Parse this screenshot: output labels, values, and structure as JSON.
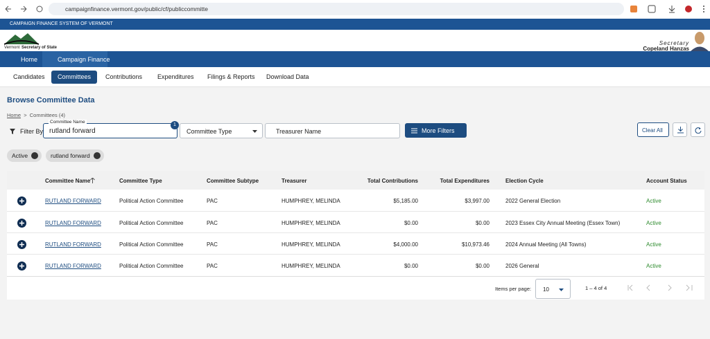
{
  "browser": {
    "url": "campaignfinance.vermont.gov/public/cf/publiccommitte"
  },
  "header": {
    "banner": "CAMPAIGN FINANCE SYSTEM OF VERMONT",
    "logo_state": "Vermont",
    "logo_office": "Secretary of State",
    "secretary_title": "Secretary",
    "secretary_name": "Copeland Hanzas"
  },
  "nav": {
    "primary": [
      "Home",
      "Campaign Finance"
    ],
    "tabs": [
      "Candidates",
      "Committees",
      "Contributions",
      "Expenditures",
      "Filings & Reports",
      "Download Data"
    ],
    "active_tab": 1
  },
  "page": {
    "title": "Browse Committee Data",
    "breadcrumb": [
      "Home",
      "Committees (4)"
    ],
    "breadcrumb_separator": ">"
  },
  "filters": {
    "filter_by": "Filter By",
    "committee_name_label": "Committee Name",
    "committee_name_value": "rutland forward",
    "badge": "1",
    "committee_type": "Committee Type",
    "treasurer_name": "Treasurer Name",
    "more_filters": "More Filters",
    "clear_all": "Clear All",
    "chips": [
      "Active",
      "rutland forward"
    ]
  },
  "table": {
    "columns": [
      "Committee Name",
      "Committee Type",
      "Committee Subtype",
      "Treasurer",
      "Total Contributions",
      "Total Expenditures",
      "Election Cycle",
      "Account Status"
    ],
    "rows": [
      [
        "RUTLAND FORWARD",
        "Political Action Committee",
        "PAC",
        "HUMPHREY, MELINDA",
        "$5,185.00",
        "$3,997.00",
        "2022 General Election",
        "Active"
      ],
      [
        "RUTLAND FORWARD",
        "Political Action Committee",
        "PAC",
        "HUMPHREY, MELINDA",
        "$0.00",
        "$0.00",
        "2023 Essex City Annual Meeting (Essex Town)",
        "Active"
      ],
      [
        "RUTLAND FORWARD",
        "Political Action Committee",
        "PAC",
        "HUMPHREY, MELINDA",
        "$4,000.00",
        "$10,973.46",
        "2024 Annual Meeting (All Towns)",
        "Active"
      ],
      [
        "RUTLAND FORWARD",
        "Political Action Committee",
        "PAC",
        "HUMPHREY, MELINDA",
        "$0.00",
        "$0.00",
        "2026 General",
        "Active"
      ]
    ]
  },
  "pagination": {
    "items_per_page_label": "Items per page:",
    "items_per_page": "10",
    "range": "1 – 4 of 4"
  }
}
